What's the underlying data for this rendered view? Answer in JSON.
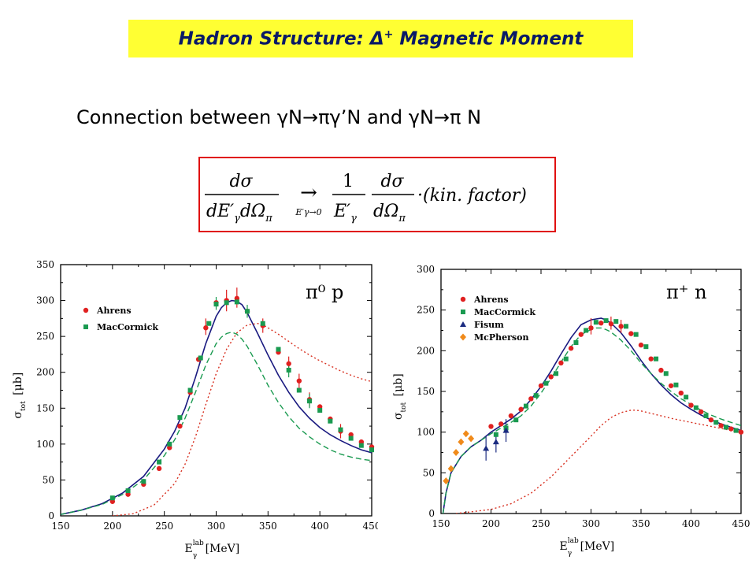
{
  "header": {
    "title_prefix": "Hadron Structure: ",
    "title_delta": "Δ",
    "title_sup": "+",
    "title_suffix": " Magnetic Moment",
    "subtitle_start": "Connection between ",
    "subtitle_rxn1": "γN→πγ’N",
    "subtitle_and": " and ",
    "subtitle_rxn2": "γN→π N"
  },
  "formula": {
    "d_sigma": "dσ",
    "denominator_left": "dE′",
    "gamma_sub": "γ",
    "d_omega": "dΩ",
    "pi_sub": "π",
    "arrow": "→",
    "limit": "E′γ→0",
    "one": "1",
    "denominator_mid": "E′",
    "kin_factor": "·(kin. factor)"
  },
  "colors": {
    "title_bg": "#ffff33",
    "title_text": "#0a1a66",
    "formula_border": "#e01010",
    "ahrens": "#e02020",
    "maccormick": "#1a9a50",
    "fisum": "#1a2a80",
    "mcpherson": "#f08a1a",
    "solid_curve": "#1a1a80",
    "dashed_curve": "#1a9a50",
    "dotted_curve": "#d83020"
  },
  "chart_data": [
    {
      "type": "scatter",
      "panel_label": "π⁰ p",
      "xlabel": "E",
      "xlabel_sup": "lab",
      "xlabel_sub": "γ",
      "xlabel_unit": "[MeV]",
      "ylabel": "σ",
      "ylabel_sub": "tot",
      "ylabel_unit": "[μb]",
      "xlim": [
        150,
        450
      ],
      "ylim": [
        0,
        350
      ],
      "xticks": [
        150,
        200,
        250,
        300,
        350,
        400,
        450
      ],
      "yticks": [
        0,
        50,
        100,
        150,
        200,
        250,
        300,
        350
      ],
      "legend": [
        "Ahrens",
        "MacCormick"
      ],
      "series": [
        {
          "name": "Ahrens",
          "marker": "circle",
          "color": "#e02020",
          "x": [
            200,
            215,
            230,
            245,
            255,
            265,
            275,
            283,
            290,
            300,
            310,
            320,
            330,
            345,
            360,
            370,
            380,
            390,
            400,
            410,
            420,
            430,
            440,
            450
          ],
          "y": [
            20,
            30,
            44,
            66,
            95,
            125,
            172,
            218,
            262,
            297,
            300,
            303,
            285,
            265,
            228,
            212,
            188,
            162,
            152,
            135,
            118,
            113,
            103,
            96
          ]
        },
        {
          "name": "MacCormick",
          "marker": "square",
          "color": "#1a9a50",
          "x": [
            200,
            215,
            230,
            245,
            255,
            265,
            275,
            285,
            293,
            300,
            310,
            320,
            330,
            345,
            360,
            370,
            380,
            390,
            400,
            410,
            420,
            430,
            440,
            450
          ],
          "y": [
            25,
            35,
            48,
            75,
            100,
            137,
            175,
            220,
            268,
            295,
            297,
            298,
            285,
            268,
            232,
            203,
            175,
            160,
            147,
            132,
            120,
            108,
            98,
            92
          ]
        }
      ],
      "curves": [
        {
          "style": "solid",
          "color": "#1a1a80",
          "x": [
            150,
            170,
            190,
            210,
            230,
            250,
            260,
            270,
            280,
            290,
            300,
            305,
            310,
            315,
            320,
            325,
            330,
            340,
            350,
            360,
            370,
            380,
            390,
            400,
            410,
            420,
            430,
            440,
            450
          ],
          "y": [
            2,
            8,
            17,
            32,
            55,
            93,
            118,
            150,
            193,
            240,
            278,
            290,
            297,
            300,
            299,
            294,
            283,
            254,
            224,
            196,
            172,
            152,
            136,
            123,
            113,
            105,
            98,
            92,
            88
          ]
        },
        {
          "style": "dashed",
          "color": "#1a9a50",
          "x": [
            150,
            170,
            190,
            210,
            230,
            250,
            260,
            270,
            280,
            290,
            300,
            305,
            310,
            315,
            320,
            325,
            330,
            340,
            350,
            360,
            370,
            380,
            390,
            400,
            410,
            420,
            430,
            440,
            450
          ],
          "y": [
            2,
            8,
            16,
            30,
            50,
            84,
            106,
            136,
            172,
            210,
            240,
            249,
            254,
            256,
            253,
            246,
            236,
            210,
            182,
            158,
            138,
            122,
            110,
            100,
            92,
            86,
            82,
            79,
            77
          ]
        },
        {
          "style": "dotted",
          "color": "#d83020",
          "x": [
            200,
            220,
            240,
            260,
            270,
            280,
            290,
            300,
            310,
            320,
            330,
            340,
            345,
            350,
            360,
            370,
            380,
            390,
            400,
            410,
            420,
            430,
            440,
            450
          ],
          "y": [
            0,
            3,
            15,
            45,
            72,
            110,
            155,
            198,
            232,
            255,
            266,
            268,
            266,
            262,
            253,
            243,
            233,
            224,
            216,
            209,
            202,
            196,
            191,
            187
          ]
        }
      ],
      "error_bars": [
        {
          "x": 290,
          "lo": 252,
          "hi": 275,
          "color": "#e02020"
        },
        {
          "x": 310,
          "lo": 285,
          "hi": 315,
          "color": "#e02020"
        },
        {
          "x": 320,
          "lo": 290,
          "hi": 318,
          "color": "#e02020"
        },
        {
          "x": 345,
          "lo": 255,
          "hi": 275,
          "color": "#e02020"
        },
        {
          "x": 370,
          "lo": 200,
          "hi": 222,
          "color": "#e02020"
        },
        {
          "x": 380,
          "lo": 178,
          "hi": 198,
          "color": "#e02020"
        },
        {
          "x": 390,
          "lo": 152,
          "hi": 172,
          "color": "#e02020"
        },
        {
          "x": 420,
          "lo": 108,
          "hi": 128,
          "color": "#e02020"
        },
        {
          "x": 300,
          "lo": 287,
          "hi": 305,
          "color": "#1a9a50"
        },
        {
          "x": 330,
          "lo": 276,
          "hi": 294,
          "color": "#1a9a50"
        },
        {
          "x": 370,
          "lo": 193,
          "hi": 213,
          "color": "#1a9a50"
        },
        {
          "x": 390,
          "lo": 150,
          "hi": 170,
          "color": "#1a9a50"
        }
      ]
    },
    {
      "type": "scatter",
      "panel_label": "π⁺ n",
      "xlabel": "E",
      "xlabel_sup": "lab",
      "xlabel_sub": "γ",
      "xlabel_unit": "[MeV]",
      "ylabel": "σ",
      "ylabel_sub": "tot",
      "ylabel_unit": "[μb]",
      "xlim": [
        150,
        450
      ],
      "ylim": [
        0,
        300
      ],
      "xticks": [
        150,
        200,
        250,
        300,
        350,
        400,
        450
      ],
      "yticks": [
        0,
        50,
        100,
        150,
        200,
        250,
        300
      ],
      "legend": [
        "Ahrens",
        "MacCormick",
        "Fisum",
        "McPherson"
      ],
      "series": [
        {
          "name": "Ahrens",
          "marker": "circle",
          "color": "#e02020",
          "x": [
            200,
            210,
            220,
            230,
            240,
            250,
            260,
            270,
            280,
            290,
            300,
            310,
            320,
            330,
            340,
            350,
            360,
            370,
            380,
            390,
            400,
            410,
            420,
            430,
            440,
            450
          ],
          "y": [
            107,
            110,
            120,
            128,
            141,
            157,
            168,
            185,
            203,
            220,
            228,
            234,
            233,
            230,
            221,
            207,
            190,
            176,
            157,
            148,
            133,
            125,
            115,
            108,
            104,
            100
          ]
        },
        {
          "name": "MacCormick",
          "marker": "square",
          "color": "#1a9a50",
          "x": [
            205,
            215,
            225,
            235,
            245,
            255,
            265,
            275,
            285,
            295,
            305,
            315,
            325,
            335,
            345,
            355,
            365,
            375,
            385,
            395,
            405,
            415,
            425,
            435,
            445
          ],
          "y": [
            97,
            105,
            115,
            132,
            145,
            160,
            172,
            190,
            210,
            225,
            235,
            237,
            236,
            230,
            220,
            205,
            190,
            172,
            158,
            143,
            130,
            120,
            112,
            106,
            102
          ]
        },
        {
          "name": "Fisum",
          "marker": "triangle",
          "color": "#1a2a80",
          "x": [
            195,
            205,
            215
          ],
          "y": [
            80,
            88,
            102
          ]
        },
        {
          "name": "McPherson",
          "marker": "diamond",
          "color": "#f08a1a",
          "x": [
            155,
            160,
            165,
            170,
            175,
            180
          ],
          "y": [
            40,
            55,
            75,
            88,
            98,
            92
          ]
        }
      ],
      "curves": [
        {
          "style": "solid",
          "color": "#1a1a80",
          "x": [
            152,
            155,
            160,
            170,
            180,
            190,
            200,
            210,
            220,
            230,
            240,
            250,
            260,
            270,
            280,
            290,
            300,
            305,
            310,
            315,
            320,
            330,
            340,
            350,
            360,
            370,
            380,
            390,
            400,
            410,
            420,
            430,
            440,
            450
          ],
          "y": [
            0,
            25,
            50,
            70,
            82,
            90,
            100,
            108,
            116,
            126,
            140,
            156,
            175,
            196,
            216,
            232,
            238,
            239,
            240,
            238,
            234,
            222,
            206,
            188,
            172,
            158,
            146,
            136,
            128,
            121,
            115,
            110,
            106,
            102
          ]
        },
        {
          "style": "dashed",
          "color": "#1a9a50",
          "x": [
            152,
            155,
            160,
            170,
            180,
            190,
            200,
            210,
            220,
            230,
            240,
            250,
            260,
            270,
            280,
            290,
            300,
            305,
            310,
            315,
            320,
            330,
            340,
            350,
            360,
            370,
            380,
            390,
            400,
            410,
            420,
            430,
            440,
            450
          ],
          "y": [
            0,
            25,
            50,
            70,
            82,
            90,
            98,
            105,
            112,
            120,
            132,
            148,
            166,
            186,
            205,
            220,
            226,
            228,
            228,
            226,
            223,
            213,
            200,
            185,
            172,
            160,
            150,
            141,
            134,
            127,
            121,
            116,
            112,
            108
          ]
        },
        {
          "style": "dotted",
          "color": "#d83020",
          "x": [
            165,
            180,
            200,
            220,
            240,
            260,
            280,
            300,
            310,
            320,
            330,
            340,
            345,
            350,
            360,
            380,
            400,
            420,
            440,
            450
          ],
          "y": [
            0,
            2,
            5,
            12,
            25,
            45,
            70,
            95,
            108,
            118,
            124,
            127,
            127,
            126,
            123,
            117,
            112,
            107,
            102,
            100
          ]
        }
      ],
      "error_bars": [
        {
          "x": 195,
          "lo": 65,
          "hi": 95,
          "color": "#1a2a80"
        },
        {
          "x": 205,
          "lo": 75,
          "hi": 100,
          "color": "#1a2a80"
        },
        {
          "x": 215,
          "lo": 88,
          "hi": 116,
          "color": "#1a2a80"
        },
        {
          "x": 300,
          "lo": 220,
          "hi": 240,
          "color": "#e02020"
        },
        {
          "x": 320,
          "lo": 226,
          "hi": 242,
          "color": "#e02020"
        },
        {
          "x": 330,
          "lo": 222,
          "hi": 238,
          "color": "#e02020"
        }
      ]
    }
  ]
}
